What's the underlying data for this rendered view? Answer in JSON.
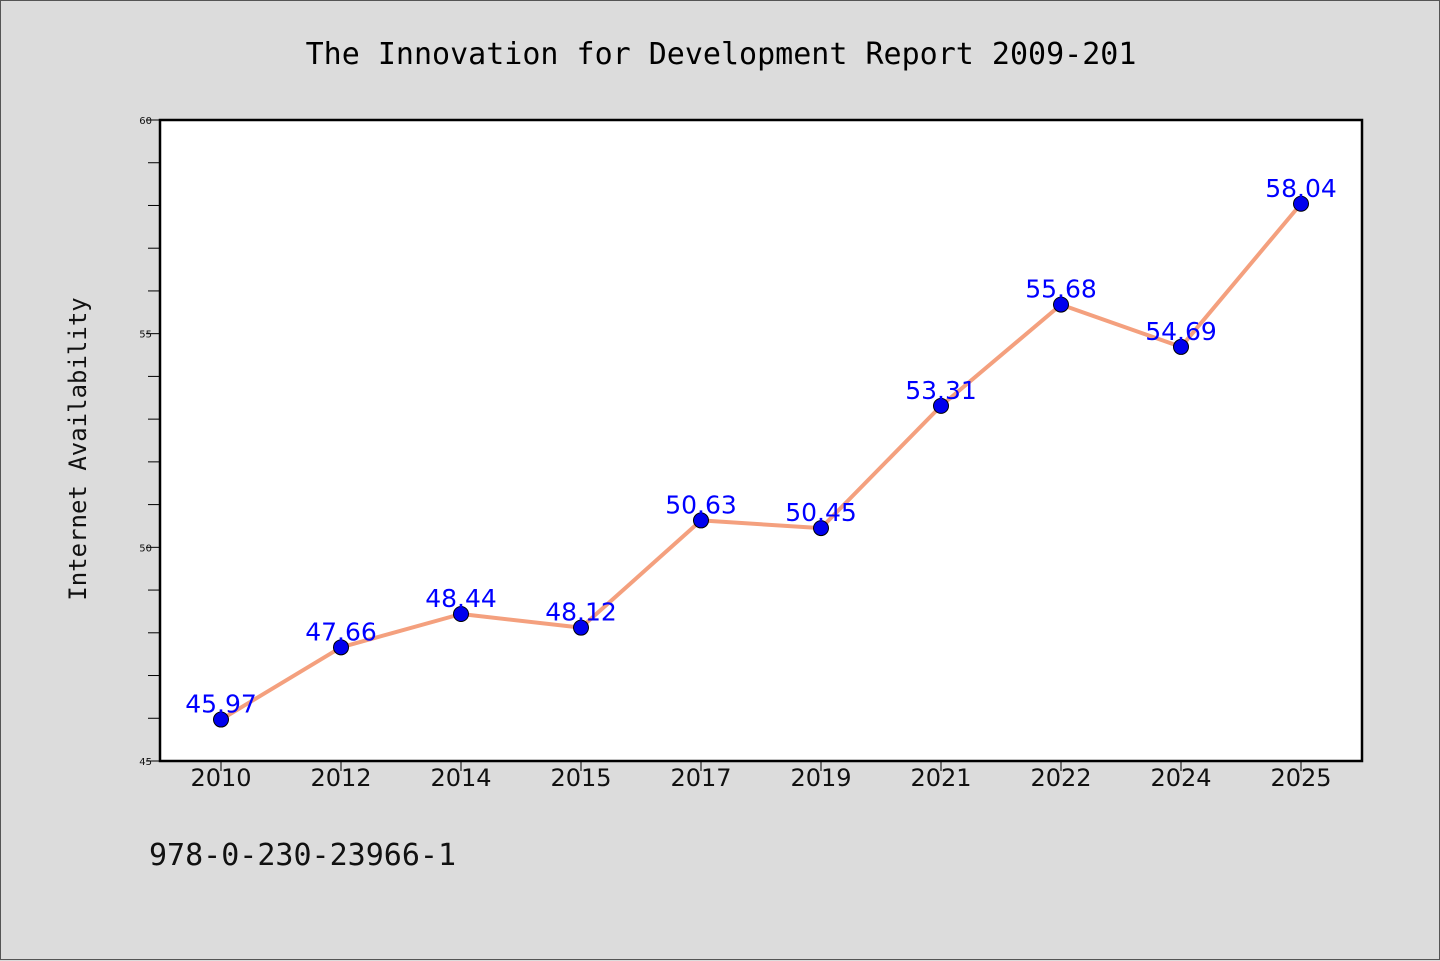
{
  "chart_data": {
    "type": "line",
    "title": "The Innovation for Development Report 2009-201",
    "xlabel": "",
    "ylabel": "Internet Availability",
    "categories": [
      "2010",
      "2012",
      "2014",
      "2015",
      "2017",
      "2019",
      "2021",
      "2022",
      "2024",
      "2025"
    ],
    "series": [
      {
        "values": [
          45.97,
          47.66,
          48.44,
          48.12,
          50.63,
          50.45,
          53.31,
          55.68,
          54.69,
          58.04
        ],
        "labels": [
          "45.97",
          "47.66",
          "48.44",
          "48.12",
          "50.63",
          "50.45",
          "53.31",
          "55.68",
          "54.69",
          "58.04"
        ],
        "line_color": "#f4a07e",
        "marker_color": "#0000ee",
        "label_color": "#0000ff"
      }
    ],
    "ylim": [
      45,
      60
    ],
    "yticks": [
      "45",
      "50",
      "55",
      "60"
    ],
    "grid": false,
    "legend": "none"
  },
  "footer_text": "978-0-230-23966-1"
}
